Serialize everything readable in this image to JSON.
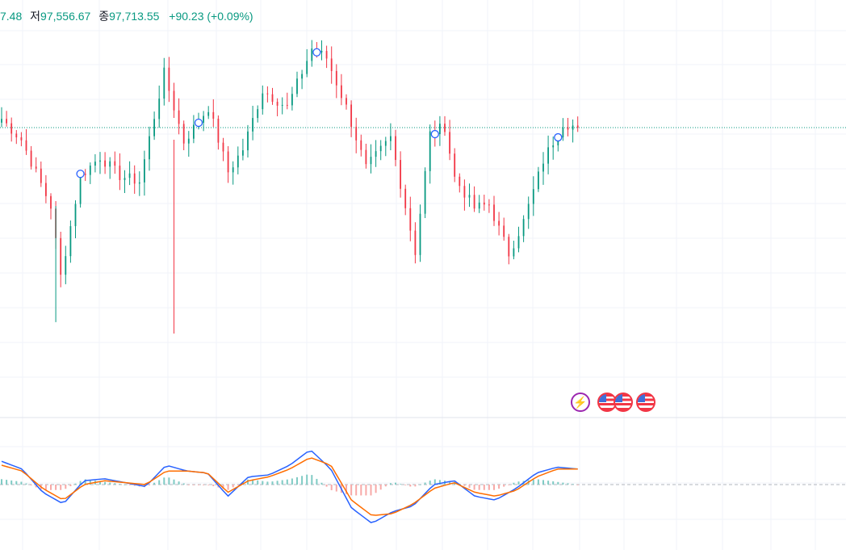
{
  "header": {
    "prev_value_fragment": "7.48",
    "low_label": "저",
    "low_value": "97,556.67",
    "close_label": "종",
    "close_value": "97,713.55",
    "change": "+90.23 (+0.09%)"
  },
  "colors": {
    "up": "#089981",
    "down": "#f23645",
    "macd_line": "#2962ff",
    "signal_line": "#ff6d00",
    "grid": "#f0f3fa",
    "price_line": "#089981",
    "event_purple": "#9c27b0"
  },
  "events": [
    {
      "icon": "lightning-icon"
    },
    {
      "icon": "us-flag-icon"
    },
    {
      "icon": "us-flag-icon"
    },
    {
      "icon": "us-flag-icon"
    }
  ],
  "chart_data": {
    "type": "candlestick",
    "ylim": [
      96600,
      98300
    ],
    "current_price": 97713.55,
    "bar_count": 118,
    "keys": [
      {
        "i": 0,
        "p": 97760
      },
      {
        "i": 4,
        "p": 97650
      },
      {
        "i": 10,
        "p": 97300
      },
      {
        "i": 12,
        "p": 96930
      },
      {
        "i": 16,
        "p": 97460
      },
      {
        "i": 20,
        "p": 97560
      },
      {
        "i": 24,
        "p": 97460
      },
      {
        "i": 28,
        "p": 97430
      },
      {
        "i": 33,
        "p": 98000
      },
      {
        "i": 37,
        "p": 97640
      },
      {
        "i": 42,
        "p": 97820
      },
      {
        "i": 46,
        "p": 97480
      },
      {
        "i": 49,
        "p": 97600
      },
      {
        "i": 53,
        "p": 97910
      },
      {
        "i": 58,
        "p": 97820
      },
      {
        "i": 63,
        "p": 98130
      },
      {
        "i": 66,
        "p": 98080
      },
      {
        "i": 70,
        "p": 97820
      },
      {
        "i": 74,
        "p": 97500
      },
      {
        "i": 79,
        "p": 97660
      },
      {
        "i": 84,
        "p": 97060
      },
      {
        "i": 87,
        "p": 97680
      },
      {
        "i": 90,
        "p": 97720
      },
      {
        "i": 92,
        "p": 97450
      },
      {
        "i": 96,
        "p": 97290
      },
      {
        "i": 99,
        "p": 97310
      },
      {
        "i": 103,
        "p": 97050
      },
      {
        "i": 106,
        "p": 97220
      },
      {
        "i": 110,
        "p": 97540
      },
      {
        "i": 114,
        "p": 97740
      },
      {
        "i": 117,
        "p": 97713.55
      }
    ],
    "markers_at_bar": [
      16,
      40,
      64,
      88,
      113
    ],
    "macd": {
      "line_keys": [
        0.6,
        0.4,
        -0.2,
        -0.5,
        0.1,
        0.15,
        0.05,
        -0.05,
        0.5,
        0.35,
        0.3,
        -0.3,
        0.2,
        0.25,
        0.5,
        0.9,
        0.4,
        -0.6,
        -1.0,
        -0.7,
        -0.55,
        0.0,
        0.1,
        -0.3,
        -0.4,
        -0.1,
        0.3,
        0.45,
        0.4
      ],
      "signal_keys": [
        0.5,
        0.35,
        -0.1,
        -0.4,
        0.0,
        0.1,
        0.05,
        0.0,
        0.35,
        0.35,
        0.3,
        -0.2,
        0.1,
        0.2,
        0.4,
        0.7,
        0.5,
        -0.4,
        -0.8,
        -0.75,
        -0.5,
        -0.1,
        0.05,
        -0.2,
        -0.3,
        -0.15,
        0.2,
        0.4,
        0.4
      ]
    }
  }
}
